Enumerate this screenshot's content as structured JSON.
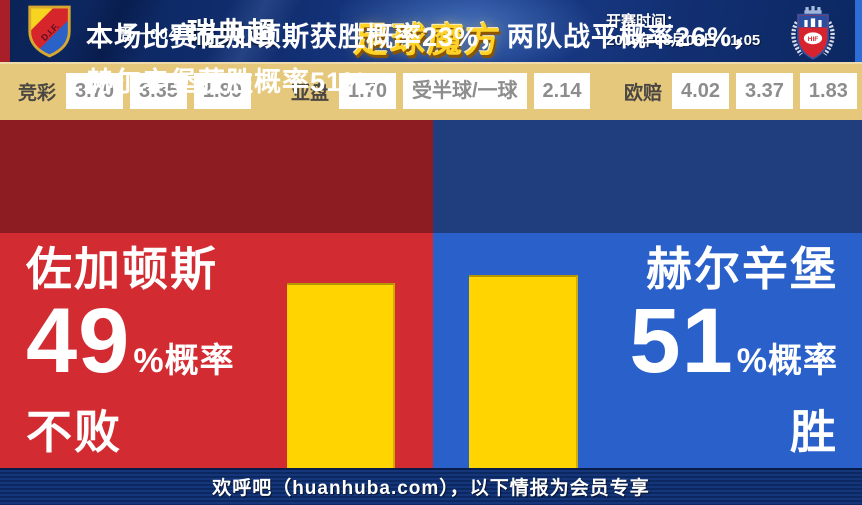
{
  "topbar": {
    "match_code": "周一004",
    "league_name": "瑞典超",
    "brand_logo_text": "足球魔方",
    "kickoff_label": "开赛时间：",
    "kickoff_datetime": "2013年08月06日 01:05",
    "home_crest_text": "D.I.F.",
    "away_crest_text": "HIF"
  },
  "odds": {
    "sports_lottery": {
      "label": "竞彩",
      "win": "3.70",
      "draw": "3.35",
      "lose": "1.80"
    },
    "asian_handicap": {
      "label": "亚盘",
      "home": "1.70",
      "line": "受半球/一球",
      "away": "2.14"
    },
    "euro_odds": {
      "label": "欧赔",
      "win": "4.02",
      "draw": "3.37",
      "lose": "1.83"
    }
  },
  "summary_text": "本场比赛佐加顿斯获胜概率23%，两队战平概率26%，赫尔辛堡获胜概率51%。",
  "home_panel": {
    "team_name": "佐加顿斯",
    "probability": "49",
    "probability_unit": "%概率",
    "outcome": "不败"
  },
  "away_panel": {
    "team_name": "赫尔辛堡",
    "probability": "51",
    "probability_unit": "%概率",
    "outcome": "胜"
  },
  "footer_text": "欢呼吧（huanhuba.com），以下情报为会员专享",
  "chart_data": {
    "type": "bar",
    "categories": [
      "佐加顿斯 不败",
      "赫尔辛堡 胜"
    ],
    "values": [
      49,
      51
    ],
    "unit": "%",
    "ylim": [
      0,
      62
    ],
    "bar_color": "#ffd400",
    "legend_position": "none",
    "grid": false
  },
  "colors": {
    "topbar_navy": "#122f73",
    "topbar_left_strip": "#a81e29",
    "topbar_right_strip": "#2e6cd8",
    "odds_row_bg": "#e6c87c",
    "odds_value_text": "#8d8d8d",
    "summary_red": "#8c1c22",
    "summary_blue": "#203d7d",
    "panel_red": "#d22b31",
    "panel_blue": "#2a60ca",
    "bar_yellow": "#ffd400",
    "footer_navy": "#0b2861",
    "brand_gold": "#ffd226"
  }
}
